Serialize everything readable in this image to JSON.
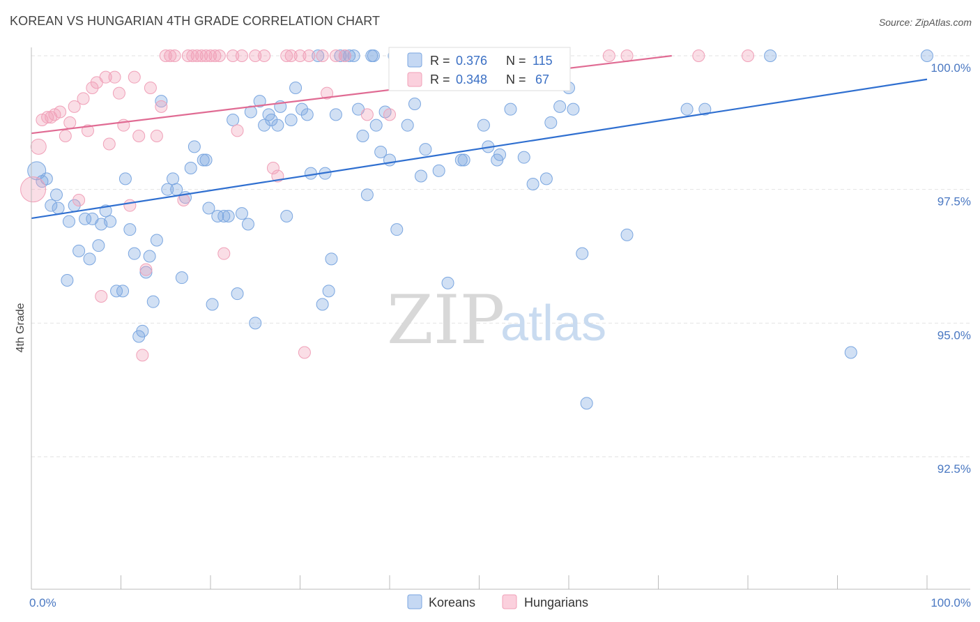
{
  "header": {
    "title": "KOREAN VS HUNGARIAN 4TH GRADE CORRELATION CHART",
    "source": "Source: ZipAtlas.com"
  },
  "watermark": {
    "zip": "ZIP",
    "atlas": "atlas"
  },
  "legend": {
    "top": [
      {
        "r_label": "R =",
        "r_value": "0.376",
        "n_label": "N =",
        "n_value": "115",
        "color": "#7aa6e0"
      },
      {
        "r_label": "R =",
        "r_value": "0.348",
        "n_label": "N =",
        "n_value": "67",
        "color": "#f0a0b8"
      }
    ],
    "bottom": [
      {
        "label": "Koreans",
        "color": "#7aa6e0"
      },
      {
        "label": "Hungarians",
        "color": "#f0a0b8"
      }
    ]
  },
  "chart_data": {
    "type": "scatter",
    "title": "KOREAN VS HUNGARIAN 4TH GRADE CORRELATION CHART",
    "ylabel": "4th Grade",
    "xlabel": "",
    "xlim": [
      0,
      100
    ],
    "ylim": [
      90.2,
      100.3
    ],
    "x_tick_labels": [
      "0.0%",
      "100.0%"
    ],
    "y_ticks": [
      {
        "value": 100.0,
        "label": "100.0%"
      },
      {
        "value": 97.5,
        "label": "97.5%"
      },
      {
        "value": 95.0,
        "label": "95.0%"
      },
      {
        "value": 92.5,
        "label": "92.5%"
      }
    ],
    "grid": true,
    "series": [
      {
        "name": "Koreans",
        "color": "#7aa6e0",
        "trend_color": "#2f6fd0",
        "trend": {
          "x": [
            0,
            100
          ],
          "y": [
            96.96,
            99.56
          ]
        },
        "points": [
          [
            0.6,
            97.85
          ],
          [
            1.2,
            97.65
          ],
          [
            1.7,
            97.7
          ],
          [
            2.2,
            97.2
          ],
          [
            2.8,
            97.4
          ],
          [
            3.0,
            97.15
          ],
          [
            4.2,
            96.9
          ],
          [
            4.8,
            97.2
          ],
          [
            5.3,
            96.35
          ],
          [
            4.0,
            95.8
          ],
          [
            6.0,
            96.95
          ],
          [
            6.5,
            96.2
          ],
          [
            6.8,
            96.95
          ],
          [
            7.5,
            96.45
          ],
          [
            7.8,
            96.85
          ],
          [
            8.3,
            97.1
          ],
          [
            8.8,
            96.9
          ],
          [
            9.5,
            95.6
          ],
          [
            10.2,
            95.6
          ],
          [
            10.5,
            97.7
          ],
          [
            11.0,
            96.75
          ],
          [
            11.5,
            96.3
          ],
          [
            12.0,
            94.75
          ],
          [
            12.4,
            94.85
          ],
          [
            12.8,
            95.95
          ],
          [
            13.2,
            96.25
          ],
          [
            13.6,
            95.4
          ],
          [
            14.0,
            96.55
          ],
          [
            14.5,
            99.15
          ],
          [
            15.2,
            97.5
          ],
          [
            15.8,
            97.7
          ],
          [
            16.2,
            97.5
          ],
          [
            16.8,
            95.85
          ],
          [
            17.2,
            97.35
          ],
          [
            17.8,
            97.9
          ],
          [
            18.2,
            98.3
          ],
          [
            19.2,
            98.05
          ],
          [
            19.5,
            98.05
          ],
          [
            19.8,
            97.15
          ],
          [
            20.2,
            95.35
          ],
          [
            20.8,
            97.0
          ],
          [
            21.5,
            97.0
          ],
          [
            22.0,
            97.0
          ],
          [
            22.5,
            98.8
          ],
          [
            23.0,
            95.55
          ],
          [
            23.5,
            97.05
          ],
          [
            24.2,
            96.85
          ],
          [
            24.5,
            98.95
          ],
          [
            25.0,
            95.0
          ],
          [
            25.5,
            99.15
          ],
          [
            26.0,
            98.7
          ],
          [
            26.5,
            98.9
          ],
          [
            26.8,
            98.8
          ],
          [
            27.5,
            98.7
          ],
          [
            27.8,
            99.05
          ],
          [
            28.5,
            97.0
          ],
          [
            29.0,
            98.8
          ],
          [
            29.5,
            99.4
          ],
          [
            30.2,
            99.0
          ],
          [
            30.8,
            98.9
          ],
          [
            31.2,
            97.8
          ],
          [
            32.0,
            100.0
          ],
          [
            32.5,
            95.35
          ],
          [
            32.8,
            97.8
          ],
          [
            33.2,
            95.6
          ],
          [
            33.5,
            96.2
          ],
          [
            34.0,
            98.9
          ],
          [
            34.5,
            100.0
          ],
          [
            35.0,
            100.0
          ],
          [
            35.5,
            100.0
          ],
          [
            36.0,
            100.0
          ],
          [
            36.5,
            99.0
          ],
          [
            37.0,
            98.5
          ],
          [
            37.5,
            97.4
          ],
          [
            38.0,
            100.0
          ],
          [
            38.5,
            98.7
          ],
          [
            39.0,
            98.2
          ],
          [
            39.5,
            98.95
          ],
          [
            40.0,
            98.05
          ],
          [
            40.5,
            100.0
          ],
          [
            40.8,
            96.75
          ],
          [
            41.5,
            100.0
          ],
          [
            42.0,
            98.7
          ],
          [
            42.8,
            99.1
          ],
          [
            43.5,
            97.75
          ],
          [
            44.0,
            98.25
          ],
          [
            45.0,
            100.0
          ],
          [
            45.5,
            97.85
          ],
          [
            46.5,
            95.75
          ],
          [
            47.5,
            100.0
          ],
          [
            48.0,
            98.05
          ],
          [
            48.3,
            98.05
          ],
          [
            49.5,
            100.0
          ],
          [
            50.5,
            98.7
          ],
          [
            51.0,
            98.3
          ],
          [
            52.0,
            98.05
          ],
          [
            52.3,
            98.15
          ],
          [
            53.5,
            99.0
          ],
          [
            55.0,
            98.1
          ],
          [
            56.0,
            97.6
          ],
          [
            57.5,
            97.7
          ],
          [
            58.0,
            98.75
          ],
          [
            59.0,
            99.05
          ],
          [
            60.0,
            99.4
          ],
          [
            60.5,
            99.0
          ],
          [
            61.5,
            96.3
          ],
          [
            62.0,
            93.5
          ],
          [
            66.5,
            96.65
          ],
          [
            73.2,
            99.0
          ],
          [
            75.2,
            99.0
          ],
          [
            82.5,
            100.0
          ],
          [
            91.5,
            94.45
          ],
          [
            100.0,
            100.0
          ],
          [
            38.2,
            100.0
          ],
          [
            58.5,
            100.0
          ]
        ]
      },
      {
        "name": "Hungarians",
        "color": "#f0a0b8",
        "trend_color": "#e06b93",
        "trend": {
          "x": [
            0,
            71.5
          ],
          "y": [
            98.55,
            100.0
          ]
        },
        "points": [
          [
            0.2,
            97.5
          ],
          [
            0.8,
            98.3
          ],
          [
            1.2,
            98.8
          ],
          [
            1.8,
            98.85
          ],
          [
            2.2,
            98.85
          ],
          [
            2.6,
            98.9
          ],
          [
            3.2,
            98.95
          ],
          [
            3.8,
            98.5
          ],
          [
            4.3,
            98.75
          ],
          [
            4.8,
            99.05
          ],
          [
            5.3,
            97.3
          ],
          [
            5.8,
            99.2
          ],
          [
            6.3,
            98.6
          ],
          [
            6.8,
            99.4
          ],
          [
            7.3,
            99.5
          ],
          [
            7.8,
            95.5
          ],
          [
            8.3,
            99.6
          ],
          [
            8.7,
            98.35
          ],
          [
            9.3,
            99.6
          ],
          [
            9.8,
            99.3
          ],
          [
            10.3,
            98.7
          ],
          [
            11.0,
            97.2
          ],
          [
            11.5,
            99.6
          ],
          [
            12.0,
            98.5
          ],
          [
            12.4,
            94.4
          ],
          [
            12.8,
            96.0
          ],
          [
            13.3,
            99.4
          ],
          [
            14.0,
            98.5
          ],
          [
            14.5,
            99.05
          ],
          [
            15.0,
            100.0
          ],
          [
            15.5,
            100.0
          ],
          [
            16.0,
            100.0
          ],
          [
            17.0,
            97.3
          ],
          [
            17.5,
            100.0
          ],
          [
            18.0,
            100.0
          ],
          [
            18.5,
            100.0
          ],
          [
            19.0,
            100.0
          ],
          [
            19.5,
            100.0
          ],
          [
            20.0,
            100.0
          ],
          [
            20.5,
            100.0
          ],
          [
            21.0,
            100.0
          ],
          [
            21.5,
            96.3
          ],
          [
            22.5,
            100.0
          ],
          [
            23.0,
            98.6
          ],
          [
            23.5,
            100.0
          ],
          [
            25.0,
            100.0
          ],
          [
            26.0,
            100.0
          ],
          [
            27.0,
            97.9
          ],
          [
            27.5,
            97.75
          ],
          [
            28.5,
            100.0
          ],
          [
            29.0,
            100.0
          ],
          [
            30.0,
            100.0
          ],
          [
            30.5,
            94.45
          ],
          [
            31.0,
            100.0
          ],
          [
            32.5,
            100.0
          ],
          [
            33.0,
            99.3
          ],
          [
            34.0,
            100.0
          ],
          [
            35.0,
            100.0
          ],
          [
            37.5,
            98.9
          ],
          [
            40.0,
            98.9
          ],
          [
            44.0,
            100.0
          ],
          [
            48.0,
            100.0
          ],
          [
            54.5,
            100.0
          ],
          [
            64.5,
            100.0
          ],
          [
            66.5,
            100.0
          ],
          [
            74.5,
            100.0
          ],
          [
            80.0,
            100.0
          ]
        ]
      }
    ]
  }
}
